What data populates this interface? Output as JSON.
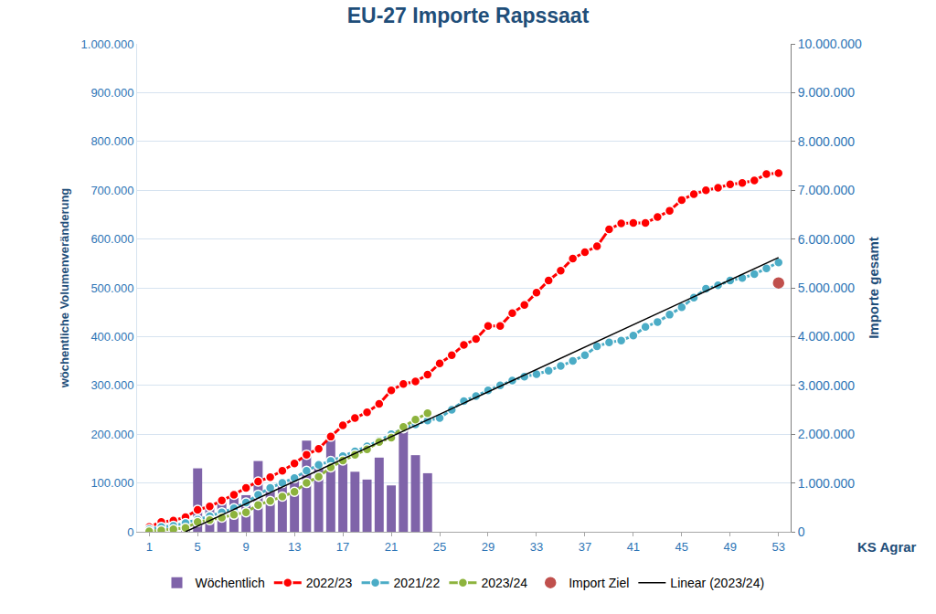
{
  "chart_data": {
    "type": "line",
    "title": "EU-27 Importe Rapssaat",
    "y_label": "wöchentliche Volumenveränderung",
    "y2_label": "Importe gesamt",
    "x": [
      1,
      2,
      3,
      4,
      5,
      6,
      7,
      8,
      9,
      10,
      11,
      12,
      13,
      14,
      15,
      16,
      17,
      18,
      19,
      20,
      21,
      22,
      23,
      24,
      25,
      26,
      27,
      28,
      29,
      30,
      31,
      32,
      33,
      34,
      35,
      36,
      37,
      38,
      39,
      40,
      41,
      42,
      43,
      44,
      45,
      46,
      47,
      48,
      49,
      50,
      51,
      52,
      53
    ],
    "xlim": [
      0,
      54
    ],
    "xticks": [
      1,
      5,
      9,
      13,
      17,
      21,
      25,
      29,
      33,
      37,
      41,
      45,
      49,
      53
    ],
    "ylim": [
      0,
      1000000
    ],
    "yticks": [
      0,
      {
        "value": 100000,
        "label": "100.000"
      },
      {
        "value": 200000,
        "label": "200.000"
      },
      {
        "value": 300000,
        "label": "300.000"
      },
      {
        "value": 400000,
        "label": "400.000"
      },
      {
        "value": 500000,
        "label": "500.000"
      },
      {
        "value": 600000,
        "label": "600.000"
      },
      {
        "value": 700000,
        "label": "700.000"
      },
      {
        "value": 800000,
        "label": "800.000"
      },
      {
        "value": 900000,
        "label": "900.000"
      },
      {
        "value": 1000000,
        "label": "1.000.000"
      }
    ],
    "y2lim": [
      0,
      10000000
    ],
    "y2ticks": [
      0,
      {
        "value": 1000000,
        "label": "1.000.000"
      },
      {
        "value": 2000000,
        "label": "2.000.000"
      },
      {
        "value": 3000000,
        "label": "3.000.000"
      },
      {
        "value": 4000000,
        "label": "4.000.000"
      },
      {
        "value": 5000000,
        "label": "5.000.000"
      },
      {
        "value": 6000000,
        "label": "6.000.000"
      },
      {
        "value": 7000000,
        "label": "7.000.000"
      },
      {
        "value": 8000000,
        "label": "8.000.000"
      },
      {
        "value": 9000000,
        "label": "9.000.000"
      },
      {
        "value": 10000000,
        "label": "10.000.000"
      }
    ],
    "grid": true,
    "legend": "bottom",
    "annotations": [
      "KS Agrar"
    ],
    "series": [
      {
        "name": "Wöchentlich",
        "type": "bar",
        "color": "#7f63a9",
        "values": [
          10000,
          20000,
          25000,
          30000,
          130000,
          55000,
          60000,
          70000,
          75000,
          145000,
          90000,
          100000,
          110000,
          187000,
          140000,
          195000,
          140000,
          123000,
          107000,
          152000,
          95000,
          210000,
          157000,
          120000,
          null,
          null,
          null,
          null,
          null,
          null,
          null,
          null,
          null,
          null,
          null,
          null,
          null,
          null,
          null,
          null,
          null,
          null,
          null,
          null,
          null,
          null,
          null,
          null,
          null,
          null,
          null,
          null,
          null
        ]
      },
      {
        "name": "2022/23",
        "type": "line",
        "axis": "y2",
        "color": "#ff0000",
        "marker": "circle",
        "line_style": "solid",
        "values": [
          100000,
          200000,
          230000,
          300000,
          450000,
          520000,
          640000,
          760000,
          900000,
          1030000,
          1120000,
          1250000,
          1400000,
          1580000,
          1700000,
          1950000,
          2180000,
          2330000,
          2450000,
          2620000,
          2900000,
          3030000,
          3080000,
          3220000,
          3450000,
          3620000,
          3830000,
          3950000,
          4220000,
          4220000,
          4480000,
          4650000,
          4900000,
          5150000,
          5350000,
          5600000,
          5730000,
          5850000,
          6200000,
          6320000,
          6330000,
          6330000,
          6450000,
          6580000,
          6800000,
          6920000,
          7000000,
          7050000,
          7120000,
          7150000,
          7200000,
          7330000,
          7350000
        ]
      },
      {
        "name": "2021/22",
        "type": "line",
        "axis": "y2",
        "color": "#4bacc6",
        "marker": "circle",
        "line_style": "solid",
        "values": [
          50000,
          100000,
          120000,
          180000,
          250000,
          320000,
          400000,
          480000,
          600000,
          760000,
          900000,
          1000000,
          1100000,
          1250000,
          1370000,
          1450000,
          1550000,
          1650000,
          1750000,
          1870000,
          2000000,
          2120000,
          2200000,
          2280000,
          2330000,
          2500000,
          2680000,
          2780000,
          2900000,
          3000000,
          3100000,
          3180000,
          3230000,
          3300000,
          3400000,
          3500000,
          3620000,
          3800000,
          3880000,
          3920000,
          4020000,
          4200000,
          4300000,
          4450000,
          4600000,
          4800000,
          4980000,
          5050000,
          5150000,
          5200000,
          5280000,
          5400000,
          5520000
        ]
      },
      {
        "name": "2023/24",
        "type": "line",
        "axis": "y2",
        "color": "#8db33d",
        "marker": "circle",
        "line_style": "solid",
        "values": [
          10000,
          30000,
          50000,
          80000,
          200000,
          240000,
          290000,
          350000,
          400000,
          550000,
          630000,
          720000,
          820000,
          1000000,
          1130000,
          1320000,
          1460000,
          1580000,
          1690000,
          1840000,
          1930000,
          2150000,
          2300000,
          2430000,
          null,
          null,
          null,
          null,
          null,
          null,
          null,
          null,
          null,
          null,
          null,
          null,
          null,
          null,
          null,
          null,
          null,
          null,
          null,
          null,
          null,
          null,
          null,
          null,
          null,
          null,
          null,
          null,
          null
        ]
      },
      {
        "name": "Import Ziel",
        "type": "scatter",
        "axis": "y2",
        "color": "#c0504d",
        "marker": "circle",
        "x": [
          53
        ],
        "values": [
          5100000
        ]
      },
      {
        "name": "Linear (2023/24)",
        "type": "line",
        "axis": "y2",
        "color": "#000000",
        "marker": "none",
        "line_style": "solid",
        "x": [
          4,
          53
        ],
        "values": [
          0,
          5620000
        ]
      }
    ]
  }
}
